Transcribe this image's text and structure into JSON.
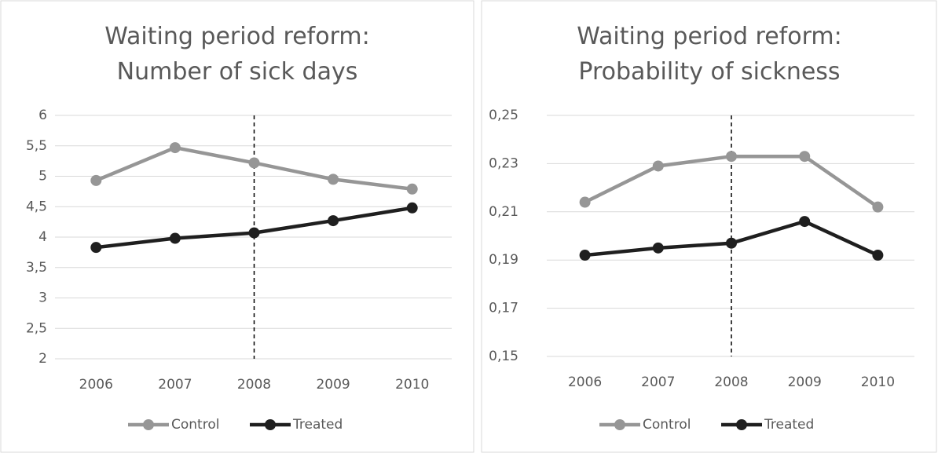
{
  "chart_data": [
    {
      "type": "line",
      "title": "Waiting period reform: Number of sick days",
      "categories": [
        "2006",
        "2007",
        "2008",
        "2009",
        "2010"
      ],
      "ylim": [
        2,
        6
      ],
      "yticks": [
        2,
        {
          "value": 2.5,
          "label": "2,5"
        },
        3,
        {
          "value": 3.5,
          "label": "3,5"
        },
        4,
        {
          "value": 4.5,
          "label": "4,5"
        },
        5,
        {
          "value": 5.5,
          "label": "5,5"
        },
        6
      ],
      "grid": true,
      "vline": "2008",
      "legend": "bottom",
      "series": [
        {
          "name": "Control",
          "color": "#969696",
          "values": [
            4.93,
            5.47,
            5.22,
            4.95,
            4.79
          ]
        },
        {
          "name": "Treated",
          "color": "#1f1f1f",
          "values": [
            3.83,
            3.98,
            4.07,
            4.27,
            4.48
          ]
        }
      ]
    },
    {
      "type": "line",
      "title": "Waiting period reform: Probability of sickness",
      "categories": [
        "2006",
        "2007",
        "2008",
        "2009",
        "2010"
      ],
      "ylim": [
        0.15,
        0.25
      ],
      "yticks": [
        {
          "value": 0.15,
          "label": "0,15"
        },
        {
          "value": 0.17,
          "label": "0,17"
        },
        {
          "value": 0.19,
          "label": "0,19"
        },
        {
          "value": 0.21,
          "label": "0,21"
        },
        {
          "value": 0.23,
          "label": "0,23"
        },
        {
          "value": 0.25,
          "label": "0,25"
        }
      ],
      "grid": true,
      "vline": "2008",
      "legend": "bottom",
      "series": [
        {
          "name": "Control",
          "color": "#969696",
          "values": [
            0.214,
            0.229,
            0.233,
            0.233,
            0.212
          ]
        },
        {
          "name": "Treated",
          "color": "#1f1f1f",
          "values": [
            0.192,
            0.195,
            0.197,
            0.206,
            0.192
          ]
        }
      ]
    }
  ]
}
